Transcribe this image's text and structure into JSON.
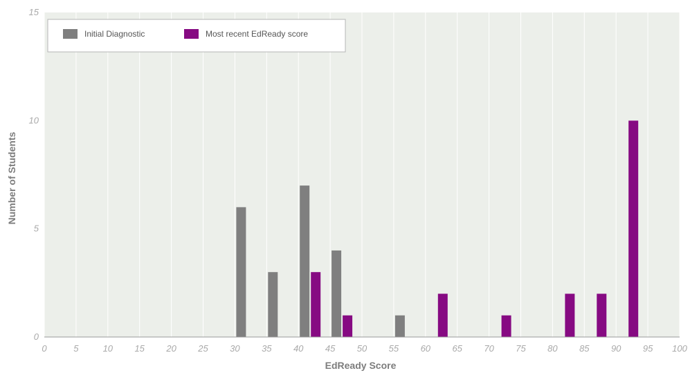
{
  "chart_data": {
    "type": "bar",
    "xlabel": "EdReady Score",
    "ylabel": "Number of Students",
    "xlim": [
      0,
      100
    ],
    "ylim": [
      0,
      15
    ],
    "x_ticks": [
      "0",
      "5",
      "10",
      "15",
      "20",
      "25",
      "30",
      "35",
      "40",
      "45",
      "50",
      "55",
      "60",
      "65",
      "70",
      "75",
      "80",
      "85",
      "90",
      "95",
      "100"
    ],
    "y_ticks": [
      "0",
      "5",
      "10",
      "15"
    ],
    "grid": true,
    "legend_position": "top-left",
    "categories": [
      "30-35",
      "35-40",
      "40-45",
      "45-50",
      "55-60",
      "60-65",
      "70-75",
      "80-85",
      "85-90",
      "90-95"
    ],
    "bin_start": [
      30,
      35,
      40,
      45,
      55,
      60,
      70,
      80,
      85,
      90
    ],
    "series": [
      {
        "name": "Initial Diagnostic",
        "color": "#7f7f7f",
        "values": [
          6,
          3,
          7,
          4,
          1,
          0,
          0,
          0,
          0,
          0
        ]
      },
      {
        "name": "Most recent EdReady score",
        "color": "#860a82",
        "values": [
          0,
          0,
          3,
          1,
          0,
          2,
          1,
          2,
          2,
          10
        ]
      }
    ]
  },
  "colors": {
    "plot_background": "#ecefea",
    "gridline": "#ffffff",
    "axis_line": "#999999"
  }
}
